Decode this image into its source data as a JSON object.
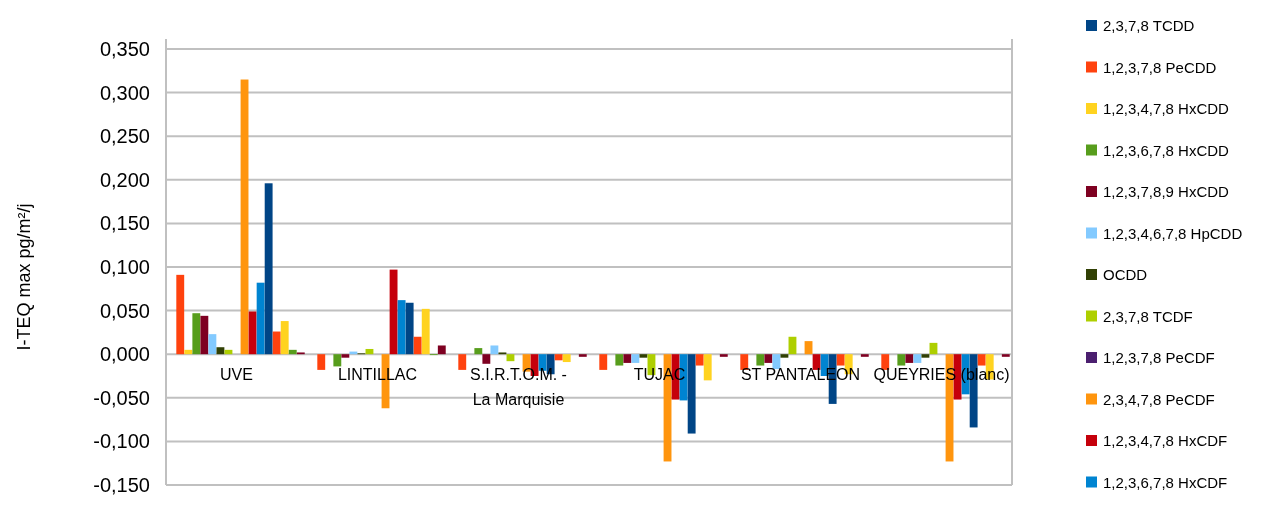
{
  "chart_data": {
    "type": "bar",
    "ylabel": "I-TEQ max pg/m²/j",
    "categories": [
      "UVE",
      "LINTILLAC",
      "S.I.R.T.O.M. - La Marquisie",
      "TUJAC",
      "ST PANTALEON",
      "QUEYRIES (blanc)"
    ],
    "series": [
      {
        "name": "2,3,7,8 TCDD",
        "color": "#004586",
        "values": [
          0,
          0,
          0,
          0,
          0,
          0
        ]
      },
      {
        "name": "1,2,3,7,8 PeCDD",
        "color": "#ff420e",
        "values": [
          0.091,
          -0.018,
          -0.018,
          -0.018,
          -0.018,
          -0.018
        ]
      },
      {
        "name": "1,2,3,4,7,8 HxCDD",
        "color": "#ffd320",
        "values": [
          0.005,
          0,
          0,
          0,
          0,
          0
        ]
      },
      {
        "name": "1,2,3,6,7,8 HxCDD",
        "color": "#579d1c",
        "values": [
          0.047,
          -0.014,
          0.007,
          -0.013,
          -0.013,
          -0.013
        ]
      },
      {
        "name": "1,2,3,7,8,9 HxCDD",
        "color": "#7e0021",
        "values": [
          0.044,
          -0.004,
          -0.011,
          -0.01,
          -0.01,
          -0.01
        ]
      },
      {
        "name": "1,2,3,4,6,7,8 HpCDD",
        "color": "#83caff",
        "values": [
          0.023,
          0.003,
          0.01,
          -0.01,
          -0.017,
          -0.01
        ]
      },
      {
        "name": "OCDD",
        "color": "#314004",
        "values": [
          0.008,
          0.001,
          0.002,
          -0.004,
          -0.004,
          -0.004
        ]
      },
      {
        "name": "2,3,7,8 TCDF",
        "color": "#aecf00",
        "values": [
          0.005,
          0.006,
          -0.008,
          -0.024,
          0.02,
          0.013
        ]
      },
      {
        "name": "1,2,3,7,8 PeCDF",
        "color": "#4b1f6f",
        "values": [
          0,
          0,
          0,
          0,
          0,
          0
        ]
      },
      {
        "name": "2,3,4,7,8 PeCDF",
        "color": "#ff950e",
        "values": [
          0.315,
          -0.062,
          -0.02,
          -0.123,
          0.015,
          -0.123
        ]
      },
      {
        "name": "1,2,3,4,7,8 HxCDF",
        "color": "#c5000b",
        "values": [
          0.049,
          0.097,
          -0.025,
          -0.052,
          -0.018,
          -0.052
        ]
      },
      {
        "name": "1,2,3,6,7,8 HxCDF",
        "color": "#0084d1",
        "values": [
          0.082,
          0.062,
          -0.019,
          -0.053,
          -0.025,
          -0.046
        ]
      },
      {
        "color": "#004586",
        "values": [
          0.196,
          0.059,
          -0.023,
          -0.091,
          -0.057,
          -0.084
        ]
      },
      {
        "color": "#ff420e",
        "values": [
          0.026,
          0.02,
          -0.007,
          -0.013,
          -0.013,
          -0.013
        ]
      },
      {
        "color": "#ffd320",
        "values": [
          0.038,
          0.052,
          -0.009,
          -0.03,
          -0.023,
          -0.029
        ]
      },
      {
        "color": "#579d1c",
        "values": [
          0.005,
          -0.001,
          0,
          0,
          0,
          0
        ]
      },
      {
        "color": "#7e0021",
        "values": [
          0.002,
          0.01,
          -0.003,
          -0.003,
          -0.003,
          -0.003
        ]
      }
    ],
    "ylim": [
      -0.15,
      0.35
    ],
    "yticks": [
      {
        "value": -0.15,
        "label": "-0,150"
      },
      {
        "value": -0.1,
        "label": "-0,100"
      },
      {
        "value": -0.05,
        "label": "-0,050"
      },
      {
        "value": 0,
        "label": "0,000"
      },
      {
        "value": 0.05,
        "label": "0,050"
      },
      {
        "value": 0.1,
        "label": "0,100"
      },
      {
        "value": 0.15,
        "label": "0,150"
      },
      {
        "value": 0.2,
        "label": "0,200"
      },
      {
        "value": 0.25,
        "label": "0,250"
      },
      {
        "value": 0.3,
        "label": "0,300"
      },
      {
        "value": 0.35,
        "label": "0,350"
      }
    ],
    "grid": "y",
    "legend": "right"
  }
}
